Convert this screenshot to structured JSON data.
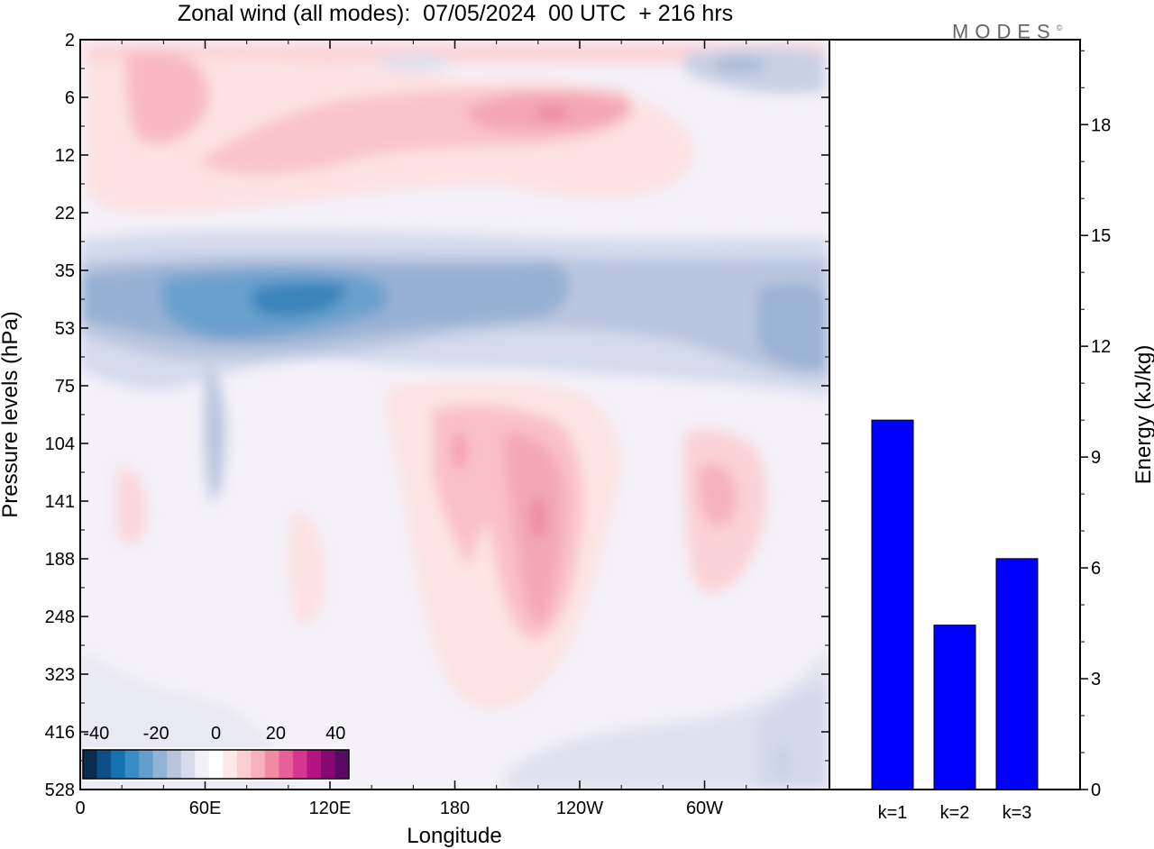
{
  "header": {
    "title": "Zonal wind (all modes):  07/05/2024  00 UTC  + 216 hrs",
    "brand": "MODES",
    "brand_mark": "©"
  },
  "chart_data": [
    {
      "type": "heatmap",
      "title": "Zonal wind (all modes):  07/05/2024  00 UTC  + 216 hrs",
      "xlabel": "Longitude",
      "ylabel": "Pressure levels (hPa)",
      "x_ticks": [
        "0",
        "60E",
        "120E",
        "180",
        "120W",
        "60W"
      ],
      "y_ticks": [
        "2",
        "6",
        "12",
        "22",
        "35",
        "53",
        "75",
        "104",
        "141",
        "188",
        "248",
        "323",
        "416",
        "528"
      ],
      "colorbar": {
        "tick_labels": [
          "-40",
          "-20",
          "0",
          "20",
          "40"
        ],
        "colors": [
          "#0a2d4f",
          "#0d4f86",
          "#1572b0",
          "#3a8cc4",
          "#639fcc",
          "#93b3d4",
          "#b8c3dd",
          "#d7dced",
          "#f3f1f8",
          "#ffffff",
          "#fde7e7",
          "#fbcfd2",
          "#f7b1bb",
          "#f18ba3",
          "#e8609a",
          "#d63592",
          "#b41383",
          "#880873",
          "#5a0a64"
        ]
      }
    },
    {
      "type": "bar",
      "categories": [
        "k=1",
        "k=2",
        "k=3"
      ],
      "values": [
        10.0,
        4.45,
        6.25
      ],
      "ylabel": "Energy (kJ/kg)",
      "ylim": [
        0,
        20.3
      ],
      "y_ticks": [
        0,
        3,
        6,
        9,
        12,
        15,
        18
      ],
      "bar_color": "#0000ff"
    }
  ]
}
